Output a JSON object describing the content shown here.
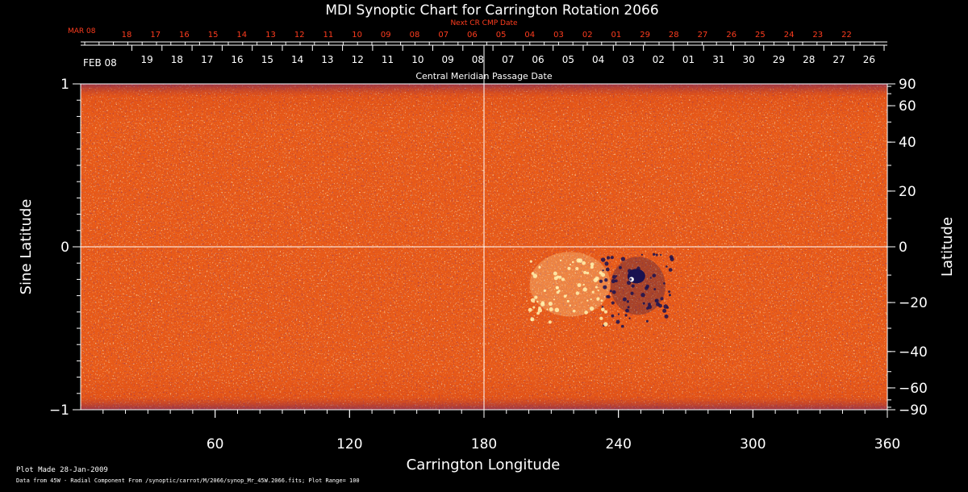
{
  "chart_data": {
    "type": "heatmap",
    "title": "MDI Synoptic Chart for Carrington Rotation 2066",
    "xlabel": "Carrington Longitude",
    "ylabel_left": "Sine Latitude",
    "ylabel_right": "Latitude",
    "xlim": [
      0,
      360
    ],
    "ylim": [
      -1,
      1
    ],
    "x_ticks": [
      "60",
      "120",
      "180",
      "240",
      "300",
      "360"
    ],
    "y_left_ticks": [
      {
        "label": "1",
        "value": 1
      },
      {
        "label": "0",
        "value": 0
      },
      {
        "label": "−1",
        "value": -1
      }
    ],
    "y_right_ticks": [
      {
        "label": "90",
        "deg": 90
      },
      {
        "label": "60",
        "deg": 60
      },
      {
        "label": "40",
        "deg": 40
      },
      {
        "label": "20",
        "deg": 20
      },
      {
        "label": "0",
        "deg": 0
      },
      {
        "label": "−20",
        "deg": -20
      },
      {
        "label": "−40",
        "deg": -40
      },
      {
        "label": "−60",
        "deg": -60
      },
      {
        "label": "−90",
        "deg": -90
      }
    ],
    "cmp_axis_label": "Central Meridian Passage Date",
    "cmp_start_label": "FEB 08",
    "cmp_days": [
      "19",
      "18",
      "17",
      "16",
      "15",
      "14",
      "13",
      "12",
      "11",
      "10",
      "09",
      "08",
      "07",
      "06",
      "05",
      "04",
      "03",
      "02",
      "01",
      "31",
      "30",
      "29",
      "28",
      "27",
      "26"
    ],
    "next_cr_label": "Next CR CMP Date",
    "next_cr_start_label": "MAR 08",
    "next_cr_days": [
      "18",
      "17",
      "16",
      "15",
      "14",
      "13",
      "12",
      "11",
      "10",
      "09",
      "08",
      "07",
      "06",
      "05",
      "04",
      "03",
      "02",
      "01",
      "29",
      "28",
      "27",
      "26",
      "25",
      "24",
      "23",
      "22"
    ],
    "crosshair": {
      "longitude": 180,
      "sine_latitude": 0
    },
    "active_region": {
      "longitude": 248,
      "sine_latitude": -0.18
    },
    "plage_region": {
      "longitude": 222,
      "sine_latitude": -0.18
    },
    "colors": {
      "background_field": "#e85a18",
      "positive_field": "#fff2b0",
      "negative_field": "#1a1250",
      "next_cr_text": "#ff3c1e",
      "axis": "#ffffff"
    }
  },
  "footer": {
    "plot_made": "Plot Made 28-Jan-2009",
    "data_source": "Data from 45W - Radial Component From /synoptic/carrot/M/2066/synop_Mr_45W.2066.fits; Plot Range= 100"
  }
}
